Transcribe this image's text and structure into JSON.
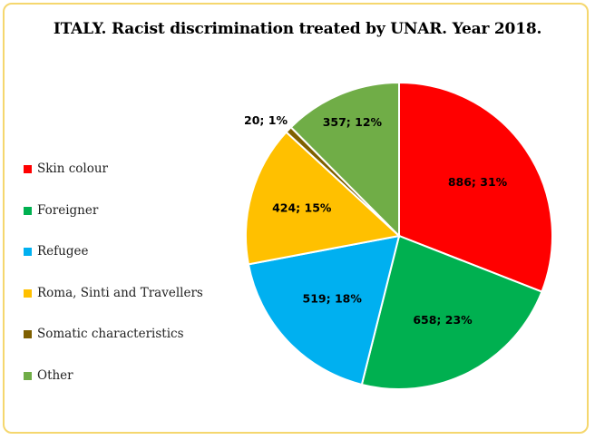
{
  "chart_data": {
    "type": "pie",
    "title": "ITALY. Racist discrimination treated by UNAR. Year 2018.",
    "categories": [
      "Skin colour",
      "Foreigner",
      "Refugee",
      "Roma, Sinti and Travellers",
      "Somatic characteristics",
      "Other"
    ],
    "values": [
      886,
      658,
      519,
      424,
      20,
      357
    ],
    "data_labels": [
      "886; 31%",
      "658; 23%",
      "519; 18%",
      "424; 15%",
      "20; 1%",
      "357; 12%"
    ],
    "colors": [
      "#ff0000",
      "#00b050",
      "#00b0f0",
      "#ffc000",
      "#7f6000",
      "#70ad47"
    ],
    "legend_position": "left"
  }
}
